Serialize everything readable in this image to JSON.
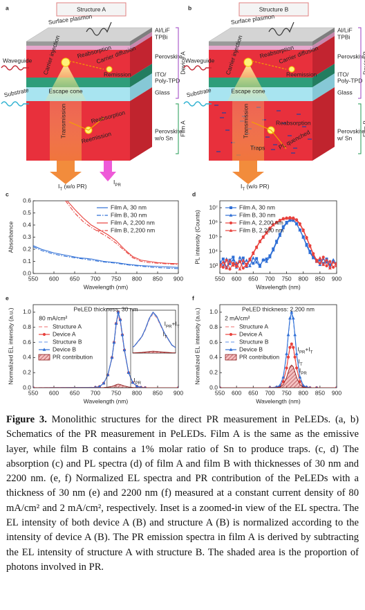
{
  "panels": {
    "a": {
      "label": "a",
      "title": "Structure A",
      "surface_plasmon": "Surface plasmon",
      "layers": [
        "Al/LiF",
        "TPBi",
        "Perovskite",
        "ITO/",
        "Poly-TPD",
        "Glass"
      ],
      "film_layer": [
        "Perovskite",
        "w/o Sn"
      ],
      "device": "Device A",
      "film": "Film A",
      "waveguide": "Waveguide",
      "substrate": "Substrate",
      "carrier_injection": "Carrier injection",
      "reabsorption_top": "Reabsorption",
      "carrier_diffusion": "Carrier diffusion",
      "reemission_top": "Remission",
      "escape_cone": "Escape cone",
      "transmission": "Transmission",
      "film_texts": [
        "Reabsorption",
        "Reemission"
      ],
      "output_labels": [
        [
          "I",
          "T",
          " (w/o PR)"
        ],
        [
          "I",
          "PR"
        ]
      ]
    },
    "b": {
      "label": "b",
      "title": "Structure B",
      "surface_plasmon": "Surface plasmon",
      "layers": [
        "Al/LiF",
        "TPBi",
        "Perovskite",
        "ITO/",
        "Poly-TPD",
        "Glass"
      ],
      "film_layer": [
        "Perovskite",
        "w/ Sn"
      ],
      "device": "Device B",
      "film": "Film B",
      "waveguide": "Waveguide",
      "substrate": "Substrate",
      "carrier_injection": "Carrier injection",
      "reabsorption_top": "Reabsorption",
      "carrier_diffusion": "Carrier diffusion",
      "reemission_top": "Reemission",
      "escape_cone": "Escape cone",
      "transmission": "Transmission",
      "film_texts": [
        "Reabsorption",
        "Traps",
        "PL quenched"
      ],
      "output_labels": [
        [
          "I",
          "T",
          " (w/o PR)"
        ]
      ]
    }
  },
  "chart_data": [
    {
      "panel_label": "c",
      "type": "line",
      "xlabel": "Wavelength (nm)",
      "ylabel": "Absorbance",
      "xlim": [
        550,
        900
      ],
      "xticks": [
        550,
        600,
        650,
        700,
        750,
        800,
        850,
        900
      ],
      "ylim": [
        0,
        0.6
      ],
      "yticks": [
        {
          "value": 0,
          "label": "0.0"
        },
        0.1,
        0.2,
        0.3,
        0.4,
        0.5,
        0.6
      ],
      "legend": "upper right",
      "series": [
        {
          "name": "Film A, 30 nm",
          "color": "#2f6fd6",
          "line_style": "solid",
          "x": [
            550,
            570,
            600,
            630,
            660,
            690,
            720,
            750,
            780,
            810,
            840,
            870,
            900
          ],
          "values": [
            0.23,
            0.2,
            0.17,
            0.15,
            0.13,
            0.12,
            0.1,
            0.09,
            0.075,
            0.065,
            0.06,
            0.055,
            0.05
          ]
        },
        {
          "name": "Film B, 30 nm",
          "color": "#2f6fd6",
          "line_style": "dashdot",
          "x": [
            550,
            570,
            600,
            630,
            660,
            690,
            720,
            750,
            780,
            810,
            840,
            870,
            900
          ],
          "values": [
            0.22,
            0.19,
            0.16,
            0.14,
            0.125,
            0.11,
            0.095,
            0.085,
            0.07,
            0.06,
            0.05,
            0.045,
            0.04
          ]
        },
        {
          "name": "Film A, 2,200 nm",
          "color": "#e8413c",
          "line_style": "solid",
          "x": [
            632,
            650,
            670,
            690,
            710,
            730,
            750,
            770,
            790,
            810,
            830,
            850,
            870,
            900
          ],
          "values": [
            0.6,
            0.53,
            0.46,
            0.4,
            0.36,
            0.32,
            0.27,
            0.2,
            0.14,
            0.11,
            0.1,
            0.09,
            0.085,
            0.08
          ]
        },
        {
          "name": "Film B, 2,200 nm",
          "color": "#e8413c",
          "line_style": "dashdot",
          "x": [
            628,
            650,
            670,
            690,
            710,
            730,
            750,
            770,
            790,
            810,
            830,
            850,
            870,
            900
          ],
          "values": [
            0.6,
            0.5,
            0.43,
            0.38,
            0.34,
            0.3,
            0.25,
            0.19,
            0.13,
            0.1,
            0.09,
            0.085,
            0.08,
            0.075
          ]
        }
      ]
    },
    {
      "panel_label": "d",
      "type": "line",
      "log_y": true,
      "xlabel": "Wavelength (nm)",
      "ylabel": "PL intensity (Counts)",
      "xlim": [
        550,
        900
      ],
      "xticks": [
        550,
        600,
        650,
        700,
        750,
        800,
        850,
        900
      ],
      "ylim": [
        300,
        30000000
      ],
      "yticks": [
        {
          "value": 1000,
          "label": "10³"
        },
        {
          "value": 10000,
          "label": "10⁴"
        },
        {
          "value": 100000,
          "label": "10⁵"
        },
        {
          "value": 1000000,
          "label": "10⁶"
        },
        {
          "value": 10000000,
          "label": "10⁷"
        }
      ],
      "legend": "upper left",
      "x": [
        550,
        560,
        570,
        580,
        590,
        600,
        610,
        620,
        630,
        640,
        650,
        660,
        670,
        680,
        690,
        700,
        710,
        720,
        730,
        740,
        750,
        760,
        770,
        780,
        790,
        800,
        810,
        820,
        830,
        840,
        850,
        860,
        870,
        880,
        890,
        900
      ],
      "series": [
        {
          "name": "Film A, 30 nm",
          "color": "#2f6fd6",
          "line_style": "solid",
          "marker": "square",
          "values": [
            1500,
            3000,
            800,
            2500,
            4000,
            1200,
            2000,
            3500,
            900,
            2800,
            1500,
            3200,
            1100,
            2500,
            3000,
            5000,
            15000,
            50000,
            150000,
            500000,
            1000000,
            1500000,
            1400000,
            800000,
            300000,
            100000,
            30000,
            10000,
            4000,
            2000,
            2500,
            1500,
            3000,
            1200,
            2000,
            1500
          ]
        },
        {
          "name": "Film B, 30 nm",
          "color": "#2f6fd6",
          "line_style": "solid",
          "marker": "triangle",
          "values": [
            2200,
            1000,
            3000,
            1400,
            2600,
            800,
            3800,
            1500,
            2400,
            1000,
            3500,
            1800,
            900,
            2700,
            2000,
            4000,
            12000,
            40000,
            120000,
            400000,
            850000,
            1300000,
            1300000,
            750000,
            280000,
            90000,
            25000,
            8000,
            3500,
            2500,
            1200,
            3000,
            1800,
            900,
            2600,
            1100
          ]
        },
        {
          "name": "Film A, 2,200 nm",
          "color": "#e8413c",
          "line_style": "solid",
          "marker": "circle",
          "values": [
            1200,
            800,
            2500,
            600,
            1500,
            900,
            2000,
            700,
            1300,
            3000,
            8000,
            20000,
            50000,
            100000,
            200000,
            400000,
            700000,
            1000000,
            1400000,
            1800000,
            2000000,
            2100000,
            2000000,
            1500000,
            800000,
            300000,
            90000,
            25000,
            7000,
            2500,
            1500,
            4000,
            1000,
            2000,
            800,
            1500
          ]
        },
        {
          "name": "Film B, 2,200 nm",
          "color": "#e8413c",
          "line_style": "solid",
          "marker": "triangle",
          "values": [
            900,
            1800,
            700,
            2200,
            1100,
            1600,
            600,
            2400,
            1000,
            2500,
            7000,
            18000,
            45000,
            90000,
            180000,
            350000,
            650000,
            950000,
            1300000,
            1650000,
            1850000,
            1900000,
            1800000,
            1350000,
            700000,
            260000,
            80000,
            22000,
            6000,
            2000,
            3500,
            1200,
            2600,
            700,
            1800,
            1000
          ]
        }
      ]
    },
    {
      "panel_label": "e",
      "type": "line",
      "xlabel": "Wavelength (nm)",
      "ylabel": "Normalized EL intensity (a.u.)",
      "xlim": [
        550,
        900
      ],
      "xticks": [
        550,
        600,
        650,
        700,
        750,
        800,
        850,
        900
      ],
      "ylim": [
        0,
        1.1
      ],
      "yticks": [
        {
          "value": 0,
          "label": "0.0"
        },
        0.2,
        0.4,
        0.6,
        0.8,
        {
          "value": 1,
          "label": "1.0"
        }
      ],
      "legend": "upper left",
      "annotations": [
        "PeLED thickness: 30 nm",
        "80 mA/cm²",
        [
          "I",
          "PR"
        ],
        [
          "I",
          "PR",
          "+I",
          "T"
        ],
        [
          "I",
          "T"
        ]
      ],
      "inset": {
        "xlim": [
          728,
          785
        ],
        "ylim": [
          0,
          1.05
        ]
      },
      "x": [
        550,
        700,
        710,
        720,
        730,
        740,
        745,
        750,
        755,
        760,
        765,
        770,
        780,
        790,
        800,
        810,
        820,
        900
      ],
      "series": [
        {
          "name": "Structure A",
          "color": "#f08a8a",
          "line_style": "dash",
          "values": [
            0,
            0.005,
            0.014,
            0.058,
            0.163,
            0.384,
            0.576,
            0.816,
            0.96,
            0.864,
            0.672,
            0.48,
            0.192,
            0.067,
            0.019,
            0.005,
            0,
            0
          ]
        },
        {
          "name": "Device A",
          "color": "#e8413c",
          "line_style": "solid",
          "marker": "circle",
          "values": [
            0,
            0.005,
            0.015,
            0.06,
            0.17,
            0.4,
            0.6,
            0.85,
            1.0,
            0.9,
            0.7,
            0.5,
            0.2,
            0.07,
            0.02,
            0.005,
            0,
            0
          ]
        },
        {
          "name": "Structure B",
          "color": "#7fa8ee",
          "line_style": "dash",
          "values": [
            0,
            0.005,
            0.015,
            0.059,
            0.167,
            0.392,
            0.588,
            0.833,
            0.98,
            0.882,
            0.686,
            0.49,
            0.196,
            0.069,
            0.02,
            0.005,
            0,
            0
          ]
        },
        {
          "name": "Device B",
          "color": "#2f6fd6",
          "line_style": "solid",
          "marker": "triangle",
          "values": [
            0,
            0.005,
            0.015,
            0.06,
            0.17,
            0.4,
            0.6,
            0.85,
            1.0,
            0.9,
            0.7,
            0.5,
            0.2,
            0.07,
            0.02,
            0.005,
            0,
            0
          ]
        },
        {
          "name": "PR contribution",
          "color": "#8b1a1a",
          "line_style": "solid",
          "fill": "hatch",
          "values": [
            0,
            0,
            0.001,
            0.003,
            0.008,
            0.018,
            0.028,
            0.04,
            0.047,
            0.042,
            0.033,
            0.024,
            0.01,
            0.004,
            0.001,
            0,
            0,
            0
          ]
        }
      ]
    },
    {
      "panel_label": "f",
      "type": "line",
      "xlabel": "Wavelength (nm)",
      "ylabel": "Normalized EL intensity (a.u.)",
      "xlim": [
        550,
        900
      ],
      "xticks": [
        550,
        600,
        650,
        700,
        750,
        800,
        850,
        900
      ],
      "ylim": [
        0,
        1.1
      ],
      "yticks": [
        {
          "value": 0,
          "label": "0.0"
        },
        0.2,
        0.4,
        0.6,
        0.8,
        {
          "value": 1,
          "label": "1.0"
        }
      ],
      "legend": "upper left",
      "annotations": [
        "PeLED thickness: 2,200 nm",
        "2 mA/cm²",
        [
          "I",
          "PR",
          "+I",
          "T"
        ],
        [
          "I",
          "T"
        ],
        [
          "I",
          "PR"
        ]
      ],
      "x": [
        550,
        700,
        720,
        730,
        740,
        750,
        755,
        760,
        765,
        770,
        775,
        780,
        790,
        800,
        810,
        820,
        840,
        900
      ],
      "series": [
        {
          "name": "Structure A",
          "color": "#f08a8a",
          "line_style": "dash",
          "values": [
            0,
            0,
            0.006,
            0.017,
            0.078,
            0.252,
            0.392,
            0.515,
            0.56,
            0.515,
            0.392,
            0.252,
            0.078,
            0.017,
            0.006,
            0,
            0,
            0
          ]
        },
        {
          "name": "Device A",
          "color": "#e8413c",
          "line_style": "solid",
          "marker": "circle",
          "values": [
            0,
            0,
            0.006,
            0.017,
            0.081,
            0.261,
            0.406,
            0.534,
            0.58,
            0.534,
            0.406,
            0.261,
            0.081,
            0.017,
            0.006,
            0,
            0,
            0
          ]
        },
        {
          "name": "Structure B",
          "color": "#7fa8ee",
          "line_style": "dash",
          "values": [
            0,
            0,
            0.01,
            0.029,
            0.136,
            0.437,
            0.679,
            0.892,
            0.97,
            0.892,
            0.679,
            0.437,
            0.136,
            0.029,
            0.01,
            0,
            0,
            0
          ]
        },
        {
          "name": "Device B",
          "color": "#2f6fd6",
          "line_style": "solid",
          "marker": "triangle",
          "values": [
            0,
            0,
            0.01,
            0.03,
            0.14,
            0.45,
            0.7,
            0.92,
            1.0,
            0.92,
            0.7,
            0.45,
            0.14,
            0.03,
            0.01,
            0,
            0,
            0
          ]
        },
        {
          "name": "PR contribution",
          "color": "#8b1a1a",
          "line_style": "solid",
          "fill": "hatch",
          "values": [
            0,
            0,
            0.003,
            0.009,
            0.042,
            0.135,
            0.21,
            0.276,
            0.3,
            0.276,
            0.21,
            0.135,
            0.042,
            0.009,
            0.003,
            0,
            0,
            0
          ]
        }
      ]
    }
  ],
  "caption": {
    "label": "Figure 3.",
    "text": "Monolithic structures for the direct PR measurement in PeLEDs. (a, b) Schematics of the PR measurement in PeLEDs. Film A is the same as the emissive layer, while film B contains a 1% molar ratio of Sn to produce traps. (c, d) The absorption (c) and PL spectra (d) of film A and film B with thicknesses of 30 nm and 2200 nm. (e, f) Normalized EL spectra and PR contribution of the PeLEDs with a thickness of 30 nm (e) and 2200 nm (f) measured at a constant current density of 80 mA/cm² and 2 mA/cm², respectively. Inset is a zoomed-in view of the EL spectra. The EL intensity of both device A (B) and structure A (B) is normalized according to the intensity of device A (B). The PR emission spectra in film A is derived by subtracting the EL intensity of structure A with structure B. The shaded area is the proportion of photons involved in PR."
  }
}
